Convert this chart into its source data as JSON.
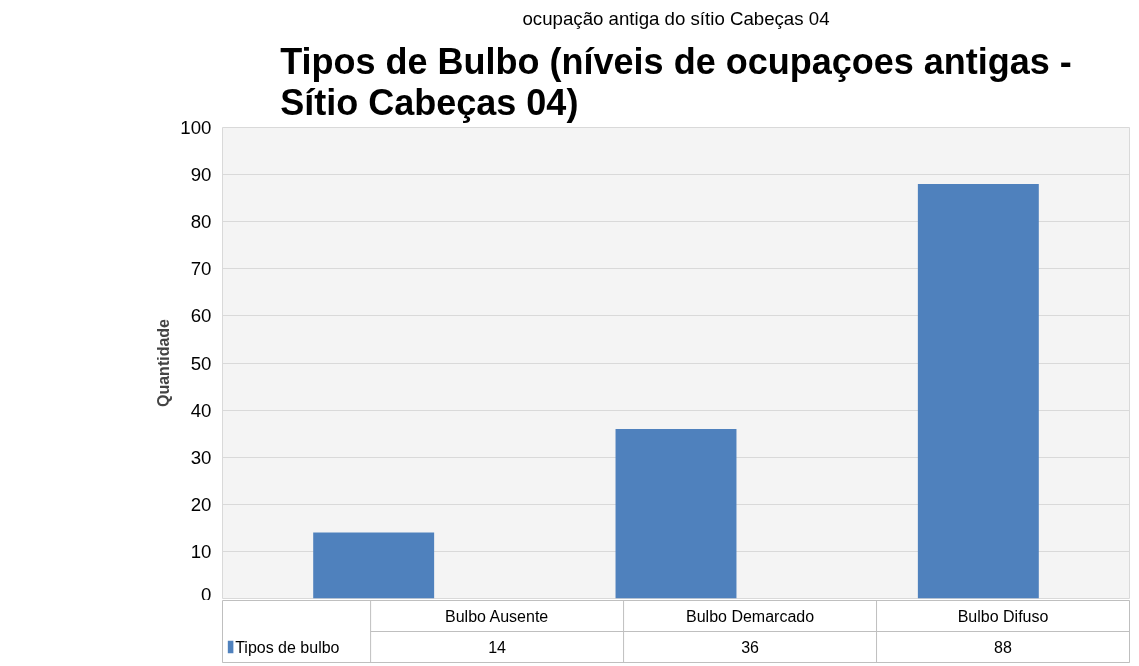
{
  "chart_data": {
    "type": "bar",
    "title": "Tipos de Bulbo (níveis de ocupaçoes antigas - Sítio Cabeças 04)",
    "annotations": [
      "ocupação antiga do sítio Cabeças 04"
    ],
    "ylabel": "Quantidade",
    "categories": [
      "Bulbo Ausente",
      "Bulbo Demarcado",
      "Bulbo Difuso"
    ],
    "series": [
      {
        "name": "Tipos de bulbo",
        "color": "#4f81bd",
        "values": [
          14,
          36,
          88
        ]
      }
    ],
    "ylim": [
      0,
      100
    ],
    "yticks": [
      0,
      10,
      20,
      30,
      40,
      50,
      60,
      70,
      80,
      90,
      100
    ],
    "grid": "y",
    "legend": "bottom",
    "data_labels": true
  }
}
